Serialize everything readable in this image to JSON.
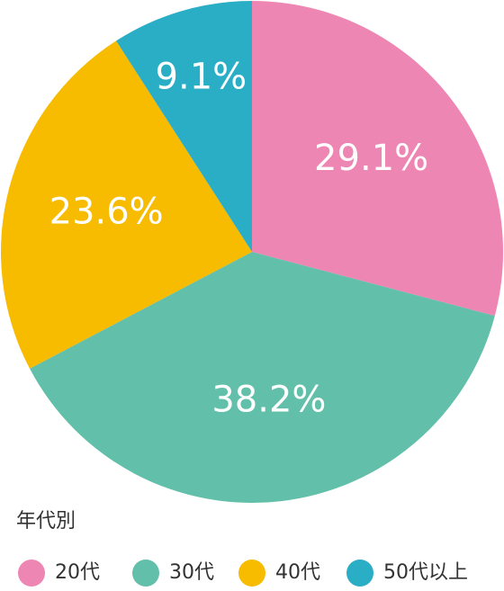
{
  "chart_data": {
    "type": "pie",
    "categories": [
      "20代",
      "30代",
      "40代",
      "50代以上"
    ],
    "values": [
      29.1,
      38.2,
      23.6,
      9.1
    ],
    "value_labels": [
      "29.1%",
      "38.2%",
      "23.6%",
      "9.1%"
    ],
    "colors": [
      "#ee86b4",
      "#62bfaa",
      "#f7bb00",
      "#29aec6"
    ],
    "legend_title": "年代別"
  }
}
